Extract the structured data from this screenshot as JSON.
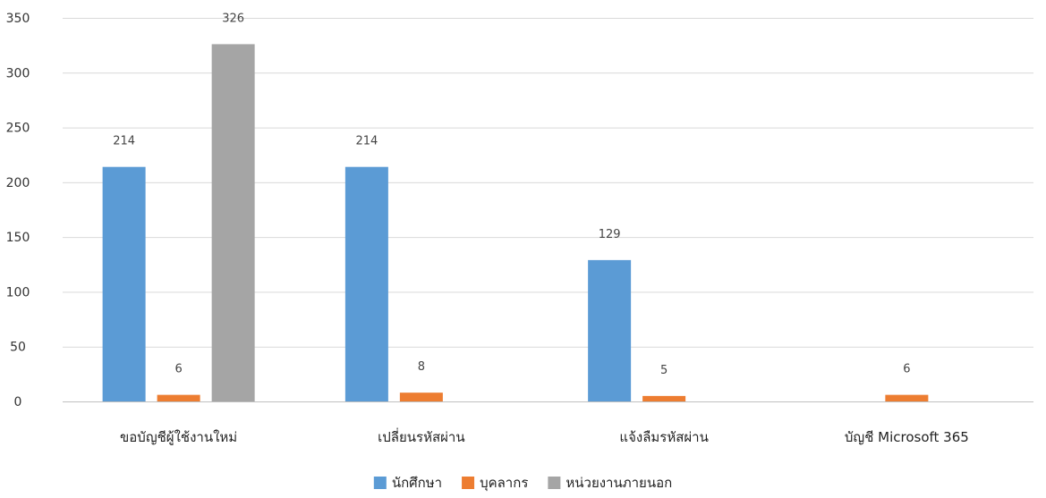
{
  "chart_data": {
    "type": "bar",
    "title": "",
    "xlabel": "",
    "ylabel": "",
    "ylim": [
      0,
      350
    ],
    "yticks": [
      0,
      50,
      100,
      150,
      200,
      250,
      300,
      350
    ],
    "grid": true,
    "legend_position": "bottom-center",
    "categories": [
      "ขอบัญชีผู้ใช้งานใหม่",
      "เปลี่ยนรหัสผ่าน",
      "แจ้งลืมรหัสผ่าน",
      "บัญชี Microsoft 365"
    ],
    "series": [
      {
        "name": "นักศึกษา",
        "color": "#5b9bd5",
        "values": [
          214,
          214,
          129,
          null
        ]
      },
      {
        "name": "บุคลากร",
        "color": "#ed7d31",
        "values": [
          6,
          8,
          5,
          6
        ]
      },
      {
        "name": "หน่วยงานภายนอก",
        "color": "#a5a5a5",
        "values": [
          326,
          null,
          null,
          null
        ]
      }
    ]
  }
}
